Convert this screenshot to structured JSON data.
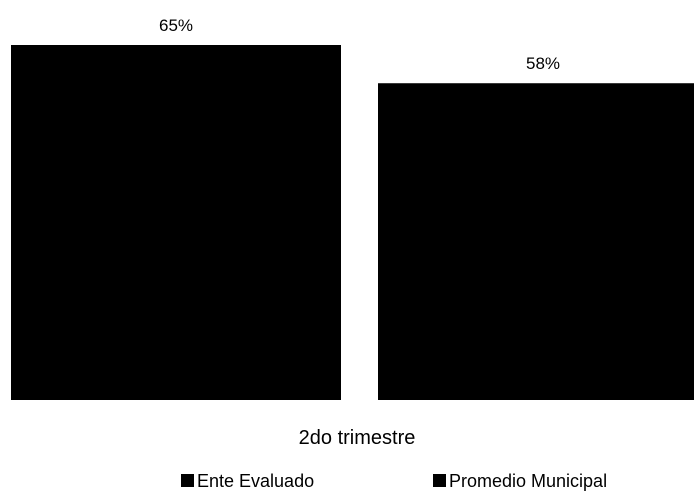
{
  "chart_data": {
    "type": "bar",
    "categories": [
      "2do trimestre"
    ],
    "series": [
      {
        "name": "Ente Evaluado",
        "values": [
          65
        ],
        "label": "65%"
      },
      {
        "name": "Promedio Municipal",
        "values": [
          58
        ],
        "label": "58%"
      }
    ],
    "ylim": [
      0,
      65
    ],
    "grid": false,
    "legend": "bottom",
    "colors": [
      "#000000",
      "#000000"
    ]
  }
}
